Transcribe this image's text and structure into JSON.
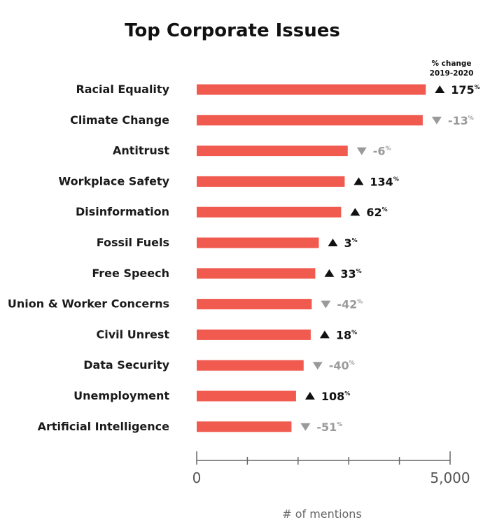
{
  "chart_data": {
    "type": "bar",
    "orientation": "horizontal",
    "title": "Top Corporate Issues",
    "change_header": [
      "% change",
      "2019-2020"
    ],
    "categories": [
      "Racial Equality",
      "Climate Change",
      "Antitrust",
      "Workplace Safety",
      "Disinformation",
      "Fossil Fuels",
      "Free Speech",
      "Union & Worker Concerns",
      "Civil Unrest",
      "Data Security",
      "Unemployment",
      "Artificial Intelligence"
    ],
    "values": [
      4520,
      4460,
      2980,
      2920,
      2850,
      2410,
      2340,
      2270,
      2250,
      2110,
      1960,
      1870
    ],
    "pct_change": [
      {
        "value": "175",
        "direction": "up"
      },
      {
        "value": "-13",
        "direction": "down"
      },
      {
        "value": "-6",
        "direction": "down"
      },
      {
        "value": "134",
        "direction": "up"
      },
      {
        "value": "62",
        "direction": "up"
      },
      {
        "value": "3",
        "direction": "up"
      },
      {
        "value": "33",
        "direction": "up"
      },
      {
        "value": "-42",
        "direction": "down"
      },
      {
        "value": "18",
        "direction": "up"
      },
      {
        "value": "-40",
        "direction": "down"
      },
      {
        "value": "108",
        "direction": "up"
      },
      {
        "value": "-51",
        "direction": "down"
      }
    ],
    "pct_symbol": "%",
    "xlim": [
      0,
      5000
    ],
    "x_tick_labels": [
      "0",
      "5,000"
    ],
    "x_minor_tick_count": 6,
    "xlabel": "# of mentions",
    "grid": false,
    "legend": "none",
    "colors": {
      "bar": "#f05a4f",
      "up_marker": "#111111",
      "down_marker": "#9a9a9a",
      "axis": "#666666"
    }
  }
}
